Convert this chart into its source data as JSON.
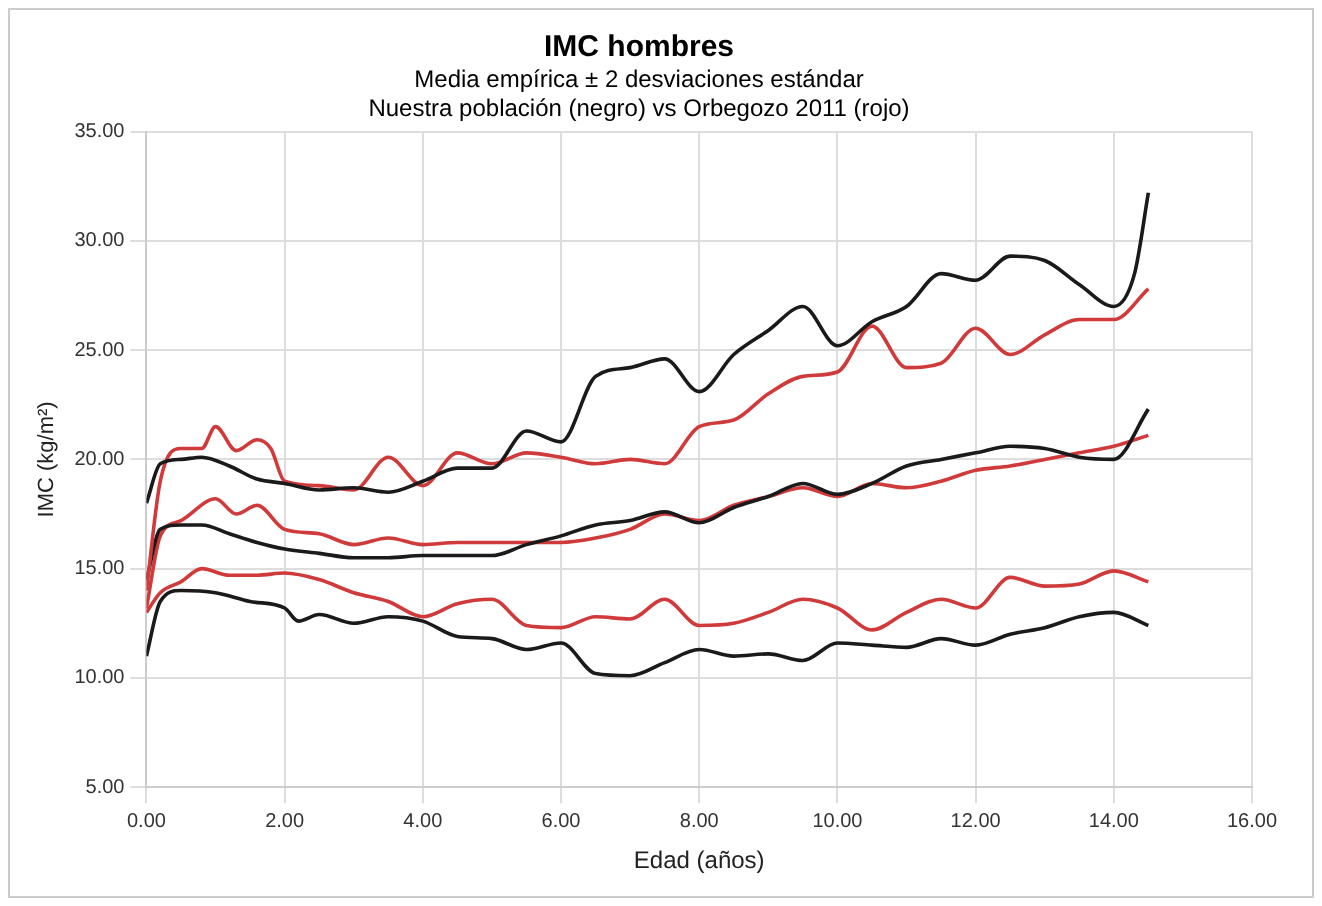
{
  "chart_data": {
    "type": "line",
    "title": "IMC hombres",
    "subtitle": "Media empírica ± 2 desviaciones estándar\nNuestra población (negro) vs Orbegozo 2011 (rojo)",
    "xlabel": "Edad (años)",
    "ylabel": "IMC (kg/m²)",
    "xlim": [
      0,
      16
    ],
    "ylim": [
      5,
      35
    ],
    "xticks": [
      {
        "value": 0,
        "label": "0.00"
      },
      {
        "value": 2,
        "label": "2.00"
      },
      {
        "value": 4,
        "label": "4.00"
      },
      {
        "value": 6,
        "label": "6.00"
      },
      {
        "value": 8,
        "label": "8.00"
      },
      {
        "value": 10,
        "label": "10.00"
      },
      {
        "value": 12,
        "label": "12.00"
      },
      {
        "value": 14,
        "label": "14.00"
      },
      {
        "value": 16,
        "label": "16.00"
      }
    ],
    "yticks": [
      {
        "value": 5,
        "label": "5.00"
      },
      {
        "value": 10,
        "label": "10.00"
      },
      {
        "value": 15,
        "label": "15.00"
      },
      {
        "value": 20,
        "label": "20.00"
      },
      {
        "value": 25,
        "label": "25.00"
      },
      {
        "value": 30,
        "label": "30.00"
      },
      {
        "value": 35,
        "label": "35.00"
      }
    ],
    "grid": true,
    "legend": false,
    "marker": "none",
    "line_style": "solid",
    "series": [
      {
        "color": "#1a1a1a",
        "x": [
          0,
          0.2,
          0.5,
          0.8,
          1.2,
          1.6,
          2,
          2.5,
          3,
          3.5,
          4,
          4.5,
          5,
          5.5,
          6,
          6.5,
          7,
          7.5,
          8,
          8.5,
          9,
          9.5,
          10,
          10.5,
          11,
          11.5,
          12,
          12.5,
          13,
          13.5,
          14,
          14.3,
          14.5
        ],
        "values": [
          18,
          19.8,
          20,
          20.1,
          19.7,
          19.1,
          18.9,
          18.6,
          18.7,
          18.5,
          19,
          19.6,
          19.6,
          21.3,
          20.8,
          23.8,
          24.2,
          24.6,
          23.1,
          24.8,
          25.9,
          27,
          25.2,
          26.3,
          27,
          28.5,
          28.2,
          29.3,
          29.1,
          28,
          27,
          28.5,
          32.2
        ]
      },
      {
        "color": "#d03a3a",
        "x": [
          0,
          0.2,
          0.5,
          0.8,
          1,
          1.3,
          1.6,
          1.8,
          2,
          2.5,
          3,
          3.5,
          4,
          4.5,
          5,
          5.5,
          6,
          6.5,
          7,
          7.5,
          8,
          8.5,
          9,
          9.5,
          10,
          10.5,
          11,
          11.5,
          12,
          12.5,
          13,
          13.5,
          14,
          14.5
        ],
        "values": [
          14,
          19,
          20.5,
          20.5,
          21.5,
          20.4,
          20.9,
          20.5,
          19,
          18.8,
          18.6,
          20.1,
          18.8,
          20.3,
          19.8,
          20.3,
          20.1,
          19.8,
          20,
          19.8,
          21.5,
          21.8,
          23,
          23.8,
          24,
          26.1,
          24.2,
          24.4,
          26,
          24.8,
          25.7,
          26.4,
          26.4,
          27.8
        ]
      },
      {
        "color": "#1a1a1a",
        "x": [
          0,
          0.2,
          0.5,
          0.8,
          1.2,
          1.6,
          2,
          2.5,
          3,
          3.5,
          4,
          4.5,
          5,
          5.5,
          6,
          6.5,
          7,
          7.5,
          8,
          8.5,
          9,
          9.5,
          10,
          10.5,
          11,
          11.5,
          12,
          12.5,
          13,
          13.5,
          14,
          14.5
        ],
        "values": [
          14.5,
          16.8,
          17,
          17,
          16.6,
          16.2,
          15.9,
          15.7,
          15.5,
          15.5,
          15.6,
          15.6,
          15.6,
          16.1,
          16.5,
          17,
          17.2,
          17.6,
          17.1,
          17.8,
          18.3,
          18.9,
          18.4,
          18.9,
          19.7,
          20,
          20.3,
          20.6,
          20.5,
          20.1,
          20,
          22.3
        ]
      },
      {
        "color": "#d03a3a",
        "x": [
          0,
          0.2,
          0.5,
          1,
          1.3,
          1.6,
          2,
          2.5,
          3,
          3.5,
          4,
          4.5,
          5,
          5.5,
          6,
          6.5,
          7,
          7.5,
          8,
          8.5,
          9,
          9.5,
          10,
          10.5,
          11,
          11.5,
          12,
          12.5,
          13,
          13.5,
          14,
          14.5
        ],
        "values": [
          13.2,
          16.5,
          17.2,
          18.2,
          17.5,
          17.9,
          16.8,
          16.6,
          16.1,
          16.4,
          16.1,
          16.2,
          16.2,
          16.2,
          16.2,
          16.4,
          16.8,
          17.5,
          17.2,
          17.9,
          18.3,
          18.7,
          18.3,
          18.9,
          18.7,
          19,
          19.5,
          19.7,
          20,
          20.3,
          20.6,
          21.1
        ]
      },
      {
        "color": "#d03a3a",
        "x": [
          0,
          0.2,
          0.5,
          0.8,
          1.2,
          1.6,
          2,
          2.5,
          3,
          3.5,
          4,
          4.5,
          5,
          5.5,
          6,
          6.5,
          7,
          7.5,
          8,
          8.5,
          9,
          9.5,
          10,
          10.5,
          11,
          11.5,
          12,
          12.5,
          13,
          13.5,
          14,
          14.5
        ],
        "values": [
          13,
          13.9,
          14.4,
          15,
          14.7,
          14.7,
          14.8,
          14.5,
          13.9,
          13.5,
          12.8,
          13.4,
          13.6,
          12.4,
          12.3,
          12.8,
          12.7,
          13.6,
          12.4,
          12.5,
          13,
          13.6,
          13.2,
          12.2,
          13,
          13.6,
          13.2,
          14.6,
          14.2,
          14.3,
          14.9,
          14.4
        ]
      },
      {
        "color": "#1a1a1a",
        "x": [
          0,
          0.2,
          0.5,
          1,
          1.5,
          2,
          2.2,
          2.5,
          3,
          3.5,
          4,
          4.5,
          5,
          5.5,
          6,
          6.5,
          7,
          7.5,
          8,
          8.5,
          9,
          9.5,
          10,
          10.5,
          11,
          11.5,
          12,
          12.5,
          13,
          13.5,
          14,
          14.5
        ],
        "values": [
          11,
          13.5,
          14,
          13.9,
          13.5,
          13.2,
          12.6,
          12.9,
          12.5,
          12.8,
          12.6,
          11.9,
          11.8,
          11.3,
          11.6,
          10.2,
          10.1,
          10.7,
          11.3,
          11,
          11.1,
          10.8,
          11.6,
          11.5,
          11.4,
          11.8,
          11.5,
          12,
          12.3,
          12.8,
          13,
          12.4
        ]
      }
    ]
  }
}
